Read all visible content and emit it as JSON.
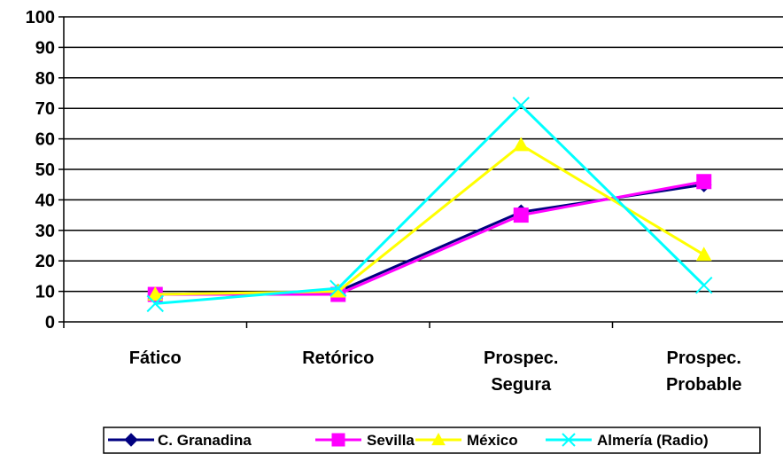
{
  "chart_data": {
    "type": "line",
    "categories": [
      [
        "Fático"
      ],
      [
        "Retórico"
      ],
      [
        "Prospec.",
        "Segura"
      ],
      [
        "Prospec.",
        "Probable"
      ]
    ],
    "ylim": [
      0,
      100
    ],
    "yticks": [
      0,
      10,
      20,
      30,
      40,
      50,
      60,
      70,
      80,
      90,
      100
    ],
    "grid": true,
    "legend_position": "bottom",
    "series": [
      {
        "name": "C. Granadina",
        "values": [
          9,
          10,
          36,
          45
        ],
        "color": "#000080",
        "marker": "diamond"
      },
      {
        "name": "Sevilla",
        "values": [
          9,
          9,
          35,
          46
        ],
        "color": "#FF00FF",
        "marker": "square"
      },
      {
        "name": "México",
        "values": [
          9,
          10,
          58,
          22
        ],
        "color": "#FFFF00",
        "marker": "triangle"
      },
      {
        "name": "Almería (Radio)",
        "values": [
          6,
          11,
          71,
          12
        ],
        "color": "#00FFFF",
        "marker": "x"
      }
    ]
  }
}
